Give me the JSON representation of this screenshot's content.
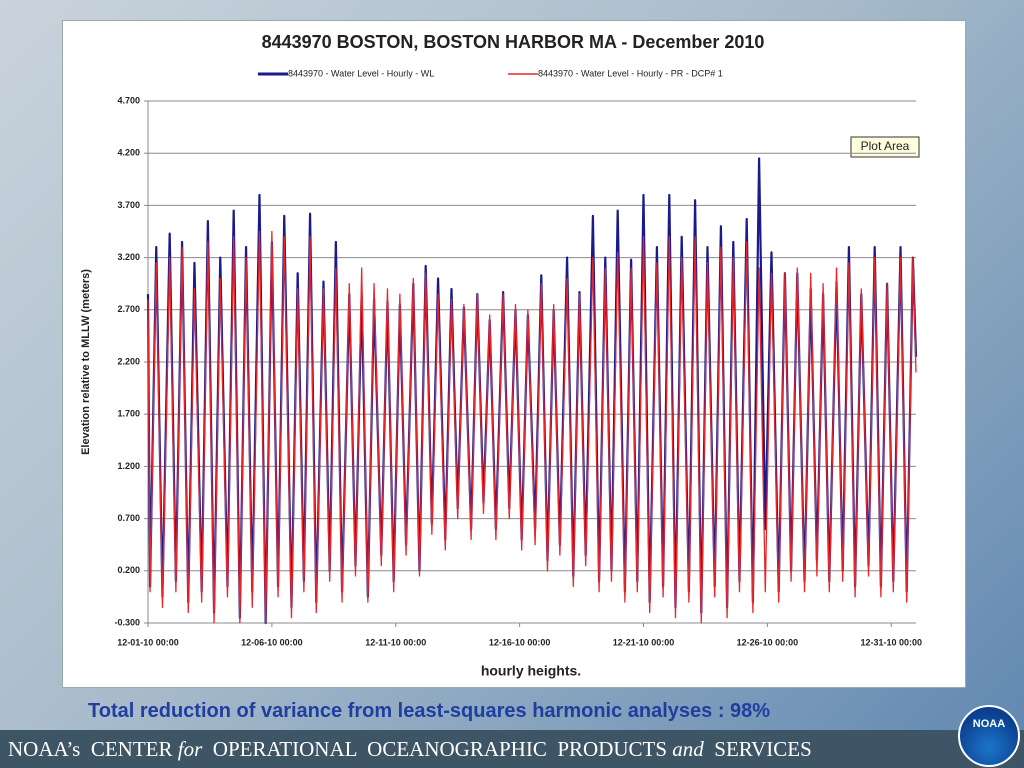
{
  "chart_data": {
    "type": "line",
    "title": "8443970  BOSTON, BOSTON HARBOR MA - December 2010",
    "x_label": "hourly heights.",
    "y_label": "Elevation relative to MLLW (meters)",
    "annotations": [
      "Plot Area"
    ],
    "grid": true,
    "legend": "top",
    "x": [
      0,
      2,
      8,
      14,
      21,
      27,
      33,
      39,
      45,
      52,
      58,
      64,
      70,
      77,
      83,
      89,
      95,
      101,
      108,
      114,
      120,
      126,
      132,
      139,
      145,
      151,
      157,
      163,
      170,
      176,
      182,
      188,
      195,
      201,
      207,
      213,
      219,
      226,
      232,
      238,
      244,
      250,
      257,
      263,
      269,
      275,
      281,
      288,
      294,
      300,
      306,
      313,
      319,
      325,
      331,
      337,
      344,
      350,
      356,
      362,
      368,
      375,
      381,
      387,
      393,
      399,
      406,
      412,
      418,
      424,
      431,
      437,
      443,
      449,
      455,
      462,
      468,
      474,
      480,
      486,
      493,
      499,
      505,
      511,
      517,
      524,
      530,
      536,
      542,
      549,
      555,
      561,
      567,
      573,
      580,
      586,
      592,
      598,
      604,
      611,
      617,
      623,
      629,
      636,
      642,
      648,
      654,
      660,
      667,
      673,
      679,
      685,
      691,
      698,
      704,
      710,
      716,
      722,
      729,
      735,
      741,
      744
    ],
    "series": [
      {
        "name": "8443970 - Water Level - Hourly - WL",
        "color": "#1a1a8c",
        "values": [
          2.85,
          0.05,
          3.3,
          -0.05,
          3.43,
          0.1,
          3.35,
          -0.1,
          3.15,
          0.0,
          3.55,
          -0.2,
          3.2,
          0.05,
          3.65,
          -0.25,
          3.3,
          0.0,
          3.8,
          -0.3,
          3.35,
          0.05,
          3.6,
          -0.15,
          3.05,
          0.1,
          3.62,
          -0.1,
          2.97,
          0.2,
          3.35,
          0.0,
          2.85,
          0.25,
          2.85,
          -0.05,
          2.8,
          0.35,
          2.78,
          0.1,
          2.75,
          0.45,
          2.95,
          0.2,
          3.12,
          0.65,
          3.0,
          0.5,
          2.9,
          0.8,
          2.72,
          0.6,
          2.85,
          0.85,
          2.6,
          0.6,
          2.87,
          0.8,
          2.7,
          0.5,
          2.65,
          0.6,
          3.03,
          0.3,
          2.7,
          0.45,
          3.2,
          0.15,
          2.87,
          0.35,
          3.6,
          0.1,
          3.2,
          0.2,
          3.65,
          0.0,
          3.18,
          0.1,
          3.8,
          -0.1,
          3.3,
          0.05,
          3.8,
          -0.15,
          3.4,
          0.0,
          3.75,
          -0.2,
          3.3,
          0.05,
          3.5,
          -0.15,
          3.35,
          0.1,
          3.57,
          -0.1,
          4.15,
          0.6,
          3.25,
          0.0,
          3.05,
          0.2,
          3.05,
          0.1,
          2.9,
          0.3,
          2.85,
          0.1,
          2.97,
          0.2,
          3.3,
          0.05,
          2.85,
          0.25,
          3.3,
          0.05,
          2.95,
          0.1,
          3.3,
          0.0,
          3.2,
          2.25
        ]
      },
      {
        "name": "8443970 - Water Level - Hourly - PR - DCP# 1",
        "color": "#e8262a",
        "values": [
          2.8,
          0.0,
          3.15,
          -0.15,
          3.2,
          0.0,
          3.3,
          -0.2,
          2.9,
          -0.1,
          3.35,
          -0.3,
          3.0,
          -0.05,
          3.4,
          -0.3,
          3.2,
          -0.15,
          3.45,
          -0.3,
          3.45,
          -0.05,
          3.4,
          -0.25,
          2.9,
          0.0,
          3.4,
          -0.2,
          2.9,
          0.1,
          3.1,
          -0.1,
          2.95,
          0.15,
          3.1,
          -0.1,
          2.95,
          0.25,
          2.9,
          0.0,
          2.85,
          0.35,
          3.0,
          0.15,
          3.05,
          0.55,
          2.85,
          0.4,
          2.8,
          0.7,
          2.75,
          0.5,
          2.85,
          0.75,
          2.65,
          0.5,
          2.85,
          0.7,
          2.75,
          0.4,
          2.7,
          0.45,
          2.95,
          0.2,
          2.75,
          0.35,
          3.0,
          0.05,
          2.85,
          0.25,
          3.2,
          0.0,
          3.1,
          0.1,
          3.25,
          -0.1,
          3.1,
          0.0,
          3.4,
          -0.2,
          3.15,
          -0.05,
          3.4,
          -0.25,
          3.2,
          -0.1,
          3.4,
          -0.3,
          3.15,
          -0.05,
          3.3,
          -0.25,
          3.2,
          0.0,
          3.35,
          -0.2,
          3.1,
          0.0,
          3.05,
          -0.1,
          3.05,
          0.1,
          3.1,
          0.0,
          3.05,
          0.15,
          2.95,
          0.0,
          3.1,
          0.1,
          3.15,
          -0.05,
          2.9,
          0.15,
          3.2,
          -0.05,
          2.95,
          0.0,
          3.2,
          -0.1,
          3.2,
          2.1
        ]
      }
    ],
    "xlim": [
      0,
      744
    ],
    "xticks": [
      {
        "value": 0,
        "label": "12-01-10 00:00"
      },
      {
        "value": 120,
        "label": "12-06-10 00:00"
      },
      {
        "value": 240,
        "label": "12-11-10 00:00"
      },
      {
        "value": 360,
        "label": "12-16-10 00:00"
      },
      {
        "value": 480,
        "label": "12-21-10 00:00"
      },
      {
        "value": 600,
        "label": "12-26-10 00:00"
      },
      {
        "value": 720,
        "label": "12-31-10 00:00"
      }
    ],
    "ylim": [
      -0.3,
      4.7
    ],
    "yticks": [
      {
        "value": -0.3,
        "label": "-0.300"
      },
      {
        "value": 0.2,
        "label": "0.200"
      },
      {
        "value": 0.7,
        "label": "0.700"
      },
      {
        "value": 1.2,
        "label": "1.200"
      },
      {
        "value": 1.7,
        "label": "1.700"
      },
      {
        "value": 2.2,
        "label": "2.200"
      },
      {
        "value": 2.7,
        "label": "2.700"
      },
      {
        "value": 3.2,
        "label": "3.200"
      },
      {
        "value": 3.7,
        "label": "3.700"
      },
      {
        "value": 4.2,
        "label": "4.200"
      },
      {
        "value": 4.7,
        "label": "4.700"
      }
    ]
  },
  "caption": "Total reduction of variance from least-squares harmonic analyses : 98%",
  "footer": {
    "parts": [
      "NOAA’s  CENTER ",
      "for",
      "  OPERATIONAL  OCEANOGRAPHIC  PRODUCTS ",
      "and",
      "  SERVICES"
    ]
  },
  "logo": "NOAA"
}
